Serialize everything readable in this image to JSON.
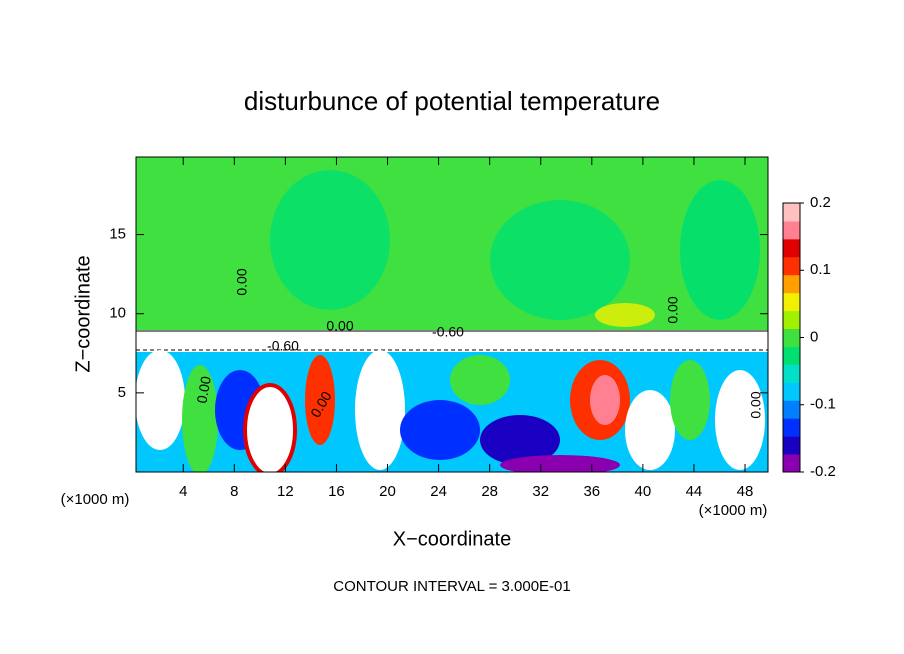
{
  "chart_data": {
    "type": "contour",
    "title": "disturbunce of potential temperature",
    "x_label": "X−coordinate",
    "y_label": "Z−coordinate",
    "x_unit": "(×1000 m)",
    "x_unit_right": "(×1000 m)",
    "footer": "CONTOUR INTERVAL = 3.000E-01",
    "xlim": [
      0.3,
      49.8
    ],
    "xticks": [
      4,
      8,
      12,
      16,
      20,
      24,
      28,
      32,
      36,
      40,
      44,
      48
    ],
    "ylim": [
      0,
      19.9
    ],
    "yticks": [
      5,
      10,
      15
    ],
    "clim": [
      -0.2,
      0.2
    ],
    "cticks": [
      0.2,
      0.1,
      0,
      -0.1,
      -0.2
    ],
    "colors": [
      "#8a00b0",
      "#1a00c0",
      "#0030ff",
      "#0080ff",
      "#00c8ff",
      "#00e0c8",
      "#00e070",
      "#40e040",
      "#a0f000",
      "#f0f000",
      "#ffa000",
      "#ff3000",
      "#e00000",
      "#ff8090",
      "#ffc0c0"
    ],
    "contour_labels": [
      "0.00",
      "0.00",
      "0.00",
      "-0.60",
      "-0.60",
      "0.00",
      "0.00",
      "0.00"
    ]
  }
}
